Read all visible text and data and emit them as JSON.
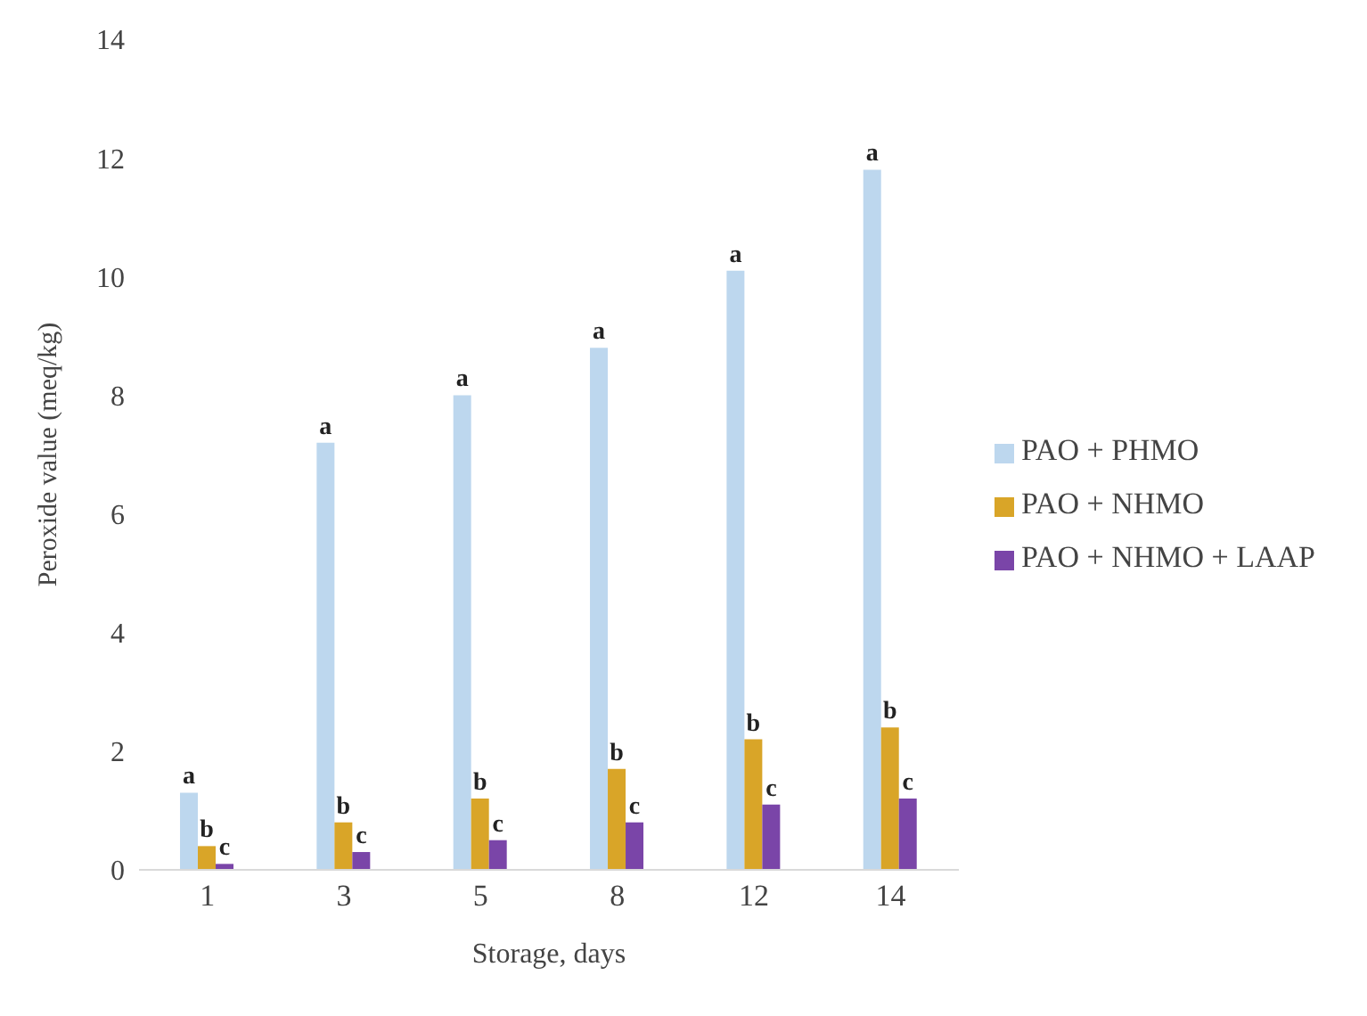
{
  "chart_data": {
    "type": "bar",
    "xlabel": "Storage, days",
    "ylabel": "Peroxide value (meq/kg)",
    "categories": [
      "1",
      "3",
      "5",
      "8",
      "12",
      "14"
    ],
    "series": [
      {
        "name": "PAO + PHMO",
        "color": "#bdd7ee",
        "values": [
          1.3,
          7.2,
          8.0,
          8.8,
          10.1,
          11.8
        ],
        "value_labels": [
          "a",
          "a",
          "a",
          "a",
          "a",
          "a"
        ]
      },
      {
        "name": "PAO + NHMO",
        "color": "#d9a528",
        "values": [
          0.4,
          0.8,
          1.2,
          1.7,
          2.2,
          2.4
        ],
        "value_labels": [
          "b",
          "b",
          "b",
          "b",
          "b",
          "b"
        ]
      },
      {
        "name": "PAO + NHMO + LAAP",
        "color": "#7a45a8",
        "values": [
          0.1,
          0.3,
          0.5,
          0.8,
          1.1,
          1.2
        ],
        "value_labels": [
          "c",
          "c",
          "c",
          "c",
          "c",
          "c"
        ]
      }
    ],
    "ylim": [
      0,
      14
    ],
    "yticks": [
      0,
      2,
      4,
      6,
      8,
      10,
      12,
      14
    ],
    "grid": false,
    "legend": "right"
  }
}
